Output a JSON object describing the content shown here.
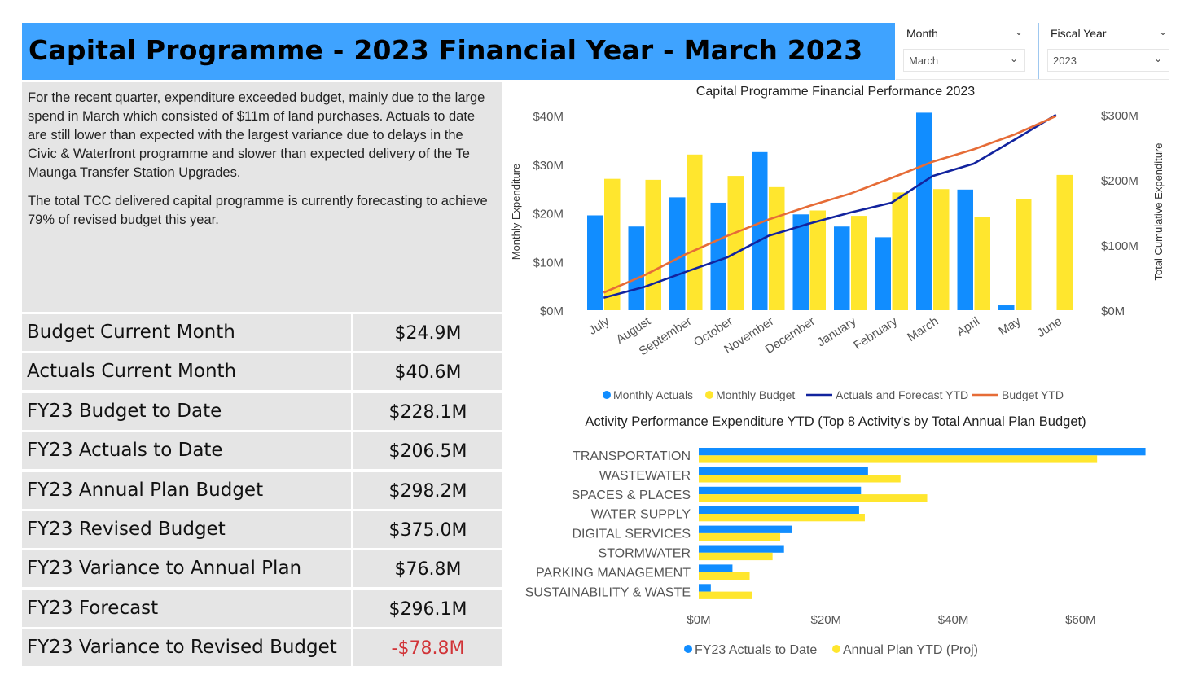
{
  "header": {
    "title": "Capital Programme - 2023 Financial Year - March 2023"
  },
  "slicers": [
    {
      "label": "Month",
      "value": "March"
    },
    {
      "label": "Fiscal Year",
      "value": "2023"
    }
  ],
  "commentary": {
    "paragraph1": "For the recent quarter, expenditure exceeded budget, mainly due to the large spend in March which consisted of $11m of land purchases. Actuals to date are still lower than expected with the largest variance due to delays in the Civic & Waterfront programme and slower than expected delivery of the Te Maunga Transfer Station Upgrades.",
    "paragraph2": "The total TCC delivered capital programme is currently forecasting to achieve 79% of revised budget this year."
  },
  "kpis": [
    {
      "label": "Budget Current Month",
      "value": "$24.9M",
      "negative": false
    },
    {
      "label": "Actuals Current Month",
      "value": "$40.6M",
      "negative": false
    },
    {
      "label": "FY23 Budget to Date",
      "value": "$228.1M",
      "negative": false
    },
    {
      "label": "FY23 Actuals to Date",
      "value": "$206.5M",
      "negative": false
    },
    {
      "label": "FY23 Annual Plan Budget",
      "value": "$298.2M",
      "negative": false
    },
    {
      "label": "FY23 Revised Budget",
      "value": "$375.0M",
      "negative": false
    },
    {
      "label": "FY23 Variance to Annual Plan",
      "value": "$76.8M",
      "negative": false
    },
    {
      "label": "FY23 Forecast",
      "value": "$296.1M",
      "negative": false
    },
    {
      "label": "FY23 Variance to Revised Budget",
      "value": "-$78.8M",
      "negative": true
    }
  ],
  "colors": {
    "actuals": "#118dff",
    "budget": "#ffe62e",
    "actuals_ytd": "#12239e",
    "budget_ytd": "#e66c37",
    "negative": "#d13438",
    "title_bg": "#3fa3ff"
  },
  "chart_data": [
    {
      "type": "bar",
      "title": "Capital Programme Financial Performance 2023",
      "categories": [
        "July",
        "August",
        "September",
        "October",
        "November",
        "December",
        "January",
        "February",
        "March",
        "April",
        "May",
        "June"
      ],
      "ylabel": "Monthly Expenditure",
      "y2label": "Total Cumulative Expenditure",
      "ylim": [
        0,
        40
      ],
      "y2lim": [
        0,
        300
      ],
      "yticks": [
        "$0M",
        "$10M",
        "$20M",
        "$30M",
        "$40M"
      ],
      "y2ticks": [
        "$0M",
        "$100M",
        "$200M",
        "$300M"
      ],
      "series": [
        {
          "name": "Monthly Actuals",
          "type": "bar",
          "axis": "y",
          "values": [
            19.5,
            17.2,
            23.2,
            22.1,
            32.5,
            19.7,
            17.2,
            15.0,
            40.6,
            24.8,
            1.0,
            null
          ]
        },
        {
          "name": "Monthly Budget",
          "type": "bar",
          "axis": "y",
          "values": [
            27.0,
            26.8,
            32.0,
            27.6,
            25.3,
            20.5,
            19.4,
            24.2,
            24.9,
            19.1,
            22.9,
            27.8
          ]
        },
        {
          "name": "Actuals and Forecast YTD",
          "type": "line",
          "axis": "y2",
          "values": [
            19,
            36,
            59,
            81,
            114,
            133,
            150,
            165,
            206,
            225,
            262,
            300
          ]
        },
        {
          "name": "Budget YTD",
          "type": "line",
          "axis": "y2",
          "values": [
            27,
            54,
            86,
            114,
            139,
            160,
            179,
            203,
            228,
            247,
            270,
            298
          ]
        }
      ],
      "legend": "bottom"
    },
    {
      "type": "bar",
      "orientation": "horizontal",
      "title": "Activity Performance Expenditure YTD (Top 8 Activity's by Total Annual Plan Budget)",
      "categories": [
        "TRANSPORTATION",
        "WASTEWATER",
        "SPACES & PLACES",
        "WATER SUPPLY",
        "DIGITAL SERVICES",
        "STORMWATER",
        "PARKING MANAGEMENT",
        "SUSTAINABILITY & WASTE"
      ],
      "xlim": [
        0,
        70
      ],
      "xticks": [
        "$0M",
        "$20M",
        "$40M",
        "$60M"
      ],
      "series": [
        {
          "name": "FY23 Actuals to Date",
          "values": [
            70.2,
            26.6,
            25.5,
            25.2,
            14.7,
            13.4,
            5.3,
            1.9
          ]
        },
        {
          "name": "Annual Plan YTD (Proj)",
          "values": [
            62.6,
            31.7,
            35.9,
            26.1,
            12.8,
            11.6,
            8.0,
            8.4
          ]
        }
      ],
      "legend": "bottom"
    }
  ]
}
